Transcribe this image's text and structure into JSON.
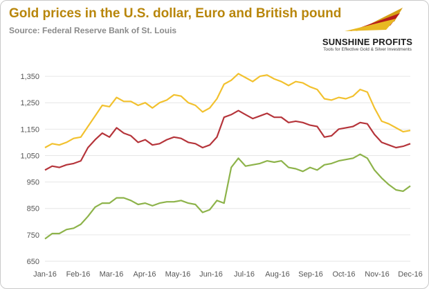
{
  "header": {
    "title": "Gold prices in the U.S. dollar, Euro and British pound",
    "source": "Source: Federal Reserve Bank of St. Louis"
  },
  "logo": {
    "name": "SUNSHINE PROFITS",
    "tagline": "Tools for Effective Gold & Silver Investments"
  },
  "colors": {
    "usd": "#f2c12e",
    "eur": "#b5343a",
    "gbp": "#8db34a",
    "gridline": "#e6e6e6",
    "title": "#b8860b"
  },
  "chart_data": {
    "type": "line",
    "title": "Gold prices in the U.S. dollar, Euro and British pound",
    "xlabel": "",
    "ylabel": "",
    "ylim": [
      650,
      1400
    ],
    "yticks": [
      "650",
      "750",
      "850",
      "950",
      "1,050",
      "1,150",
      "1,250",
      "1,350"
    ],
    "ytick_values": [
      650,
      750,
      850,
      950,
      1050,
      1150,
      1250,
      1350
    ],
    "xticks": [
      "Jan-16",
      "Feb-16",
      "Mar-16",
      "Apr-16",
      "May-16",
      "Jun-16",
      "Jul-16",
      "Aug-16",
      "Sep-16",
      "Oct-16",
      "Nov-16",
      "Dec-16"
    ],
    "x": [
      "Jan-16",
      "Jan-16",
      "Jan-16",
      "Jan-16",
      "Jan-16",
      "Feb-16",
      "Feb-16",
      "Feb-16",
      "Feb-16",
      "Mar-16",
      "Mar-16",
      "Mar-16",
      "Mar-16",
      "Mar-16",
      "Apr-16",
      "Apr-16",
      "Apr-16",
      "Apr-16",
      "May-16",
      "May-16",
      "May-16",
      "May-16",
      "Jun-16",
      "Jun-16",
      "Jun-16",
      "Jun-16",
      "Jul-16",
      "Jul-16",
      "Jul-16",
      "Jul-16",
      "Aug-16",
      "Aug-16",
      "Aug-16",
      "Aug-16",
      "Aug-16",
      "Sep-16",
      "Sep-16",
      "Sep-16",
      "Sep-16",
      "Oct-16",
      "Oct-16",
      "Oct-16",
      "Oct-16",
      "Nov-16",
      "Nov-16",
      "Nov-16",
      "Nov-16",
      "Dec-16",
      "Dec-16",
      "Dec-16",
      "Dec-16",
      "Dec-16"
    ],
    "series": [
      {
        "key": "usd",
        "values": [
          1080,
          1095,
          1090,
          1100,
          1115,
          1120,
          1160,
          1200,
          1240,
          1235,
          1270,
          1255,
          1255,
          1240,
          1250,
          1230,
          1250,
          1260,
          1280,
          1275,
          1250,
          1240,
          1215,
          1230,
          1265,
          1320,
          1335,
          1360,
          1345,
          1330,
          1350,
          1355,
          1340,
          1330,
          1315,
          1330,
          1325,
          1310,
          1300,
          1265,
          1260,
          1270,
          1265,
          1275,
          1300,
          1290,
          1230,
          1180,
          1170,
          1155,
          1140,
          1145
        ]
      },
      {
        "key": "eur",
        "values": [
          995,
          1010,
          1005,
          1015,
          1020,
          1030,
          1080,
          1110,
          1135,
          1120,
          1155,
          1135,
          1125,
          1100,
          1110,
          1090,
          1095,
          1110,
          1120,
          1115,
          1100,
          1095,
          1080,
          1090,
          1120,
          1195,
          1205,
          1220,
          1205,
          1190,
          1200,
          1210,
          1195,
          1195,
          1175,
          1180,
          1175,
          1165,
          1160,
          1120,
          1125,
          1150,
          1155,
          1160,
          1175,
          1170,
          1130,
          1100,
          1090,
          1080,
          1085,
          1095
        ]
      },
      {
        "key": "gbp",
        "values": [
          735,
          755,
          755,
          770,
          775,
          790,
          820,
          855,
          870,
          870,
          890,
          890,
          880,
          865,
          870,
          860,
          870,
          875,
          875,
          880,
          870,
          865,
          835,
          845,
          880,
          870,
          1005,
          1040,
          1010,
          1015,
          1020,
          1030,
          1025,
          1030,
          1005,
          1000,
          990,
          1005,
          995,
          1015,
          1020,
          1030,
          1035,
          1040,
          1055,
          1040,
          995,
          965,
          940,
          920,
          915,
          935
        ]
      }
    ],
    "grid": true,
    "legend": "none"
  }
}
